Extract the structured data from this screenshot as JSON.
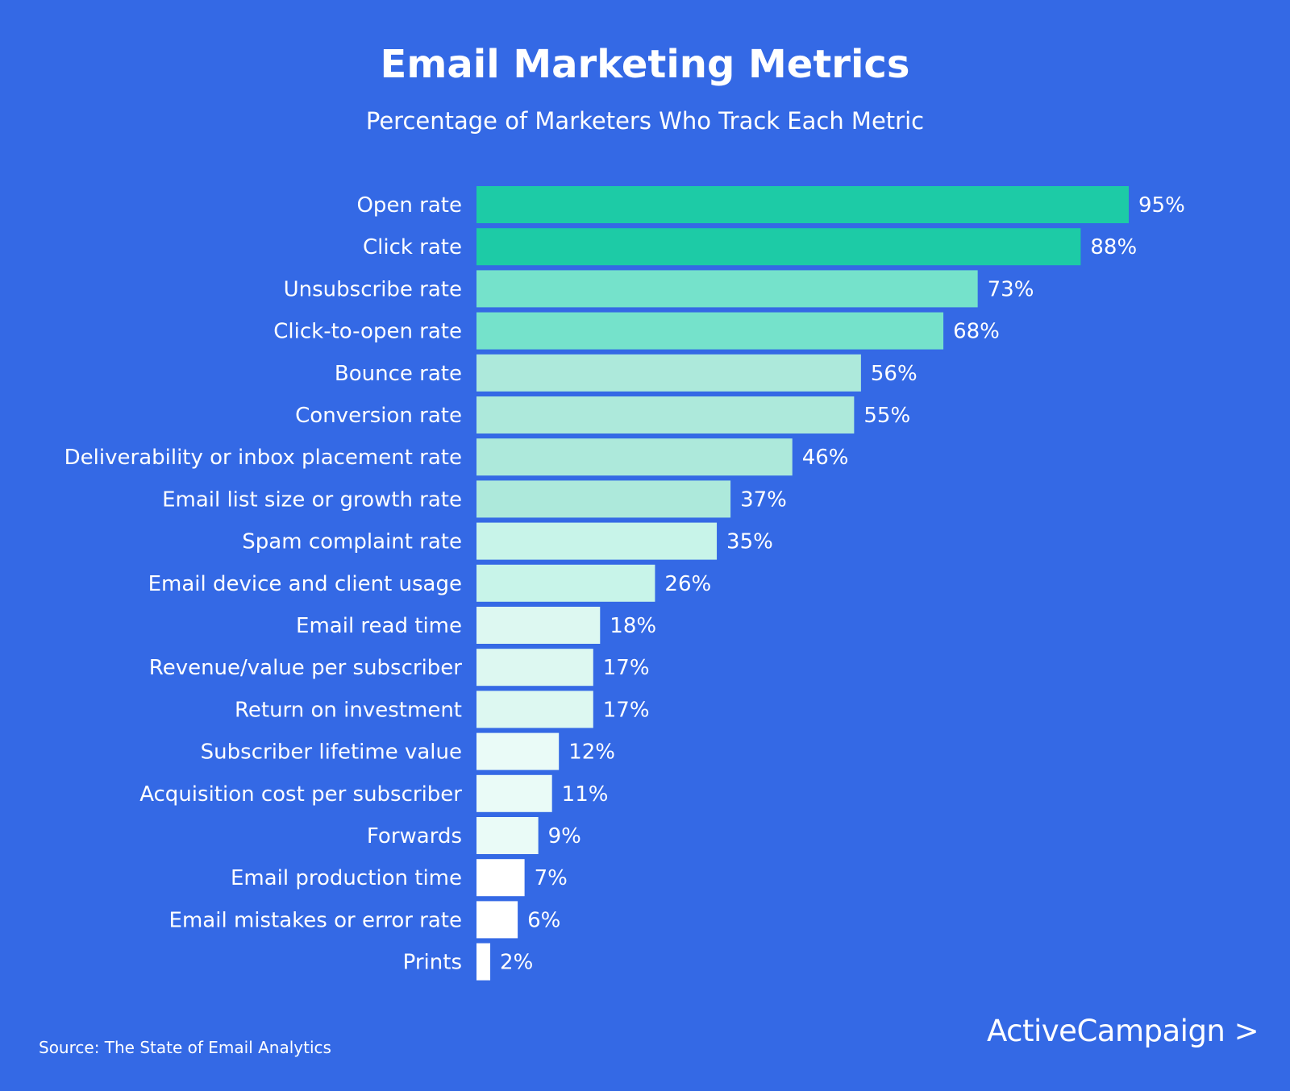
{
  "chart_data": {
    "type": "bar",
    "orientation": "horizontal",
    "title": "Email Marketing Metrics",
    "subtitle": "Percentage of Marketers Who Track Each Metric",
    "categories": [
      "Open rate",
      "Click rate",
      "Unsubscribe rate",
      "Click-to-open rate",
      "Bounce rate",
      "Conversion rate",
      "Deliverability or inbox placement rate",
      "Email list size or growth rate",
      "Spam complaint rate",
      "Email device and client usage",
      "Email read time",
      "Revenue/value per subscriber",
      "Return on investment",
      "Subscriber lifetime value",
      "Acquisition cost per subscriber",
      "Forwards",
      "Email production time",
      "Email mistakes or error rate",
      "Prints"
    ],
    "values": [
      95,
      88,
      73,
      68,
      56,
      55,
      46,
      37,
      35,
      26,
      18,
      17,
      17,
      12,
      11,
      9,
      7,
      6,
      2
    ],
    "data_labels": [
      "95%",
      "88%",
      "73%",
      "68%",
      "56%",
      "55%",
      "46%",
      "37%",
      "35%",
      "26%",
      "18%",
      "17%",
      "17%",
      "12%",
      "11%",
      "9%",
      "7%",
      "6%",
      "2%"
    ],
    "bar_colors": [
      "#1DCBA6",
      "#1DCBA6",
      "#75E2CB",
      "#75E2CB",
      "#ADE9DB",
      "#ADE9DB",
      "#ADE9DB",
      "#ADE9DB",
      "#C8F4E9",
      "#C8F4E9",
      "#DDF8F1",
      "#DDF8F1",
      "#DDF8F1",
      "#EAFBF7",
      "#EAFBF7",
      "#EAFBF7",
      "#FFFFFF",
      "#FFFFFF",
      "#FFFFFF"
    ],
    "xlim": [
      0,
      100
    ],
    "grid": false,
    "legend": "none",
    "background": "#3469E5"
  },
  "footer": {
    "source": "Source: The State of Email Analytics",
    "logo": "ActiveCampaign"
  }
}
